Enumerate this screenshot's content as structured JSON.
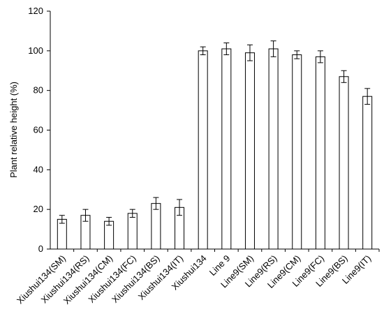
{
  "chart_data": {
    "type": "bar",
    "title": "",
    "xlabel": "",
    "ylabel": "Plant relative height (%)",
    "ylim": [
      0,
      120
    ],
    "yticks": [
      0,
      20,
      40,
      60,
      80,
      100,
      120
    ],
    "grid": false,
    "categories": [
      "Xiushui134(SM)",
      "Xiushui134(RS)",
      "Xiushui134(CM)",
      "Xiushui134(FC)",
      "Xiushui134(BS)",
      "Xiushui134(IT)",
      "Xiushui134",
      "Line 9",
      "Line9(SM)",
      "Line9(RS)",
      "Line9(CM)",
      "Line9(FC)",
      "Line9(BS)",
      "Line9(IT)"
    ],
    "values": [
      15,
      17,
      14,
      18,
      23,
      21,
      100,
      101,
      99,
      101,
      98,
      97,
      87,
      77
    ],
    "errors": [
      2,
      3,
      2,
      2,
      3,
      4,
      2,
      3,
      4,
      4,
      2,
      3,
      3,
      4
    ],
    "colors": {
      "bar_fill": "#ffffff",
      "bar_stroke": "#000000",
      "axis": "#000000"
    }
  }
}
